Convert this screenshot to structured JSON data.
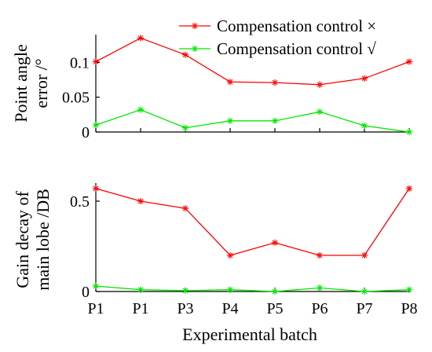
{
  "colors": {
    "compensation_off": "#ff0000",
    "compensation_on": "#00e600",
    "axis": "#000000",
    "background": "#ffffff"
  },
  "chart_data": [
    {
      "type": "line",
      "marker": "asterisk",
      "categories": [
        "P1",
        "P1",
        "P3",
        "P4",
        "P5",
        "P6",
        "P7",
        "P8"
      ],
      "series": [
        {
          "name": "Compensation control ×",
          "color": "#ff0000",
          "values": [
            0.101,
            0.135,
            0.111,
            0.072,
            0.071,
            0.068,
            0.077,
            0.101
          ]
        },
        {
          "name": "Compensation control √",
          "color": "#00e600",
          "values": [
            0.01,
            0.032,
            0.006,
            0.016,
            0.016,
            0.029,
            0.009,
            0.0
          ]
        }
      ],
      "title": "",
      "xlabel": "",
      "ylabel": "Point angle error /°",
      "ylabel_lines": [
        "Point angle",
        "error /°"
      ],
      "ylim": [
        0,
        0.14
      ],
      "yticks": [
        0,
        0.05,
        0.1
      ],
      "ytick_labels": [
        "0",
        "0.05",
        "0.1"
      ],
      "legend": "top-right",
      "grid": false
    },
    {
      "type": "line",
      "marker": "asterisk",
      "categories": [
        "P1",
        "P1",
        "P3",
        "P4",
        "P5",
        "P6",
        "P7",
        "P8"
      ],
      "series": [
        {
          "name": "Compensation control ×",
          "color": "#ff0000",
          "values": [
            0.57,
            0.5,
            0.46,
            0.2,
            0.27,
            0.2,
            0.2,
            0.57
          ]
        },
        {
          "name": "Compensation control √",
          "color": "#00e600",
          "values": [
            0.03,
            0.01,
            0.005,
            0.01,
            0.0,
            0.02,
            0.0,
            0.01
          ]
        }
      ],
      "title": "",
      "xlabel": "Experimental batch",
      "ylabel": "Gain decay of main lobe /DB",
      "ylabel_lines": [
        "Gain decay of",
        "main lobe /DB"
      ],
      "ylim": [
        0,
        0.6
      ],
      "yticks": [
        0,
        0.5
      ],
      "ytick_labels": [
        "0",
        "0.5"
      ],
      "legend": "none",
      "grid": false
    }
  ]
}
